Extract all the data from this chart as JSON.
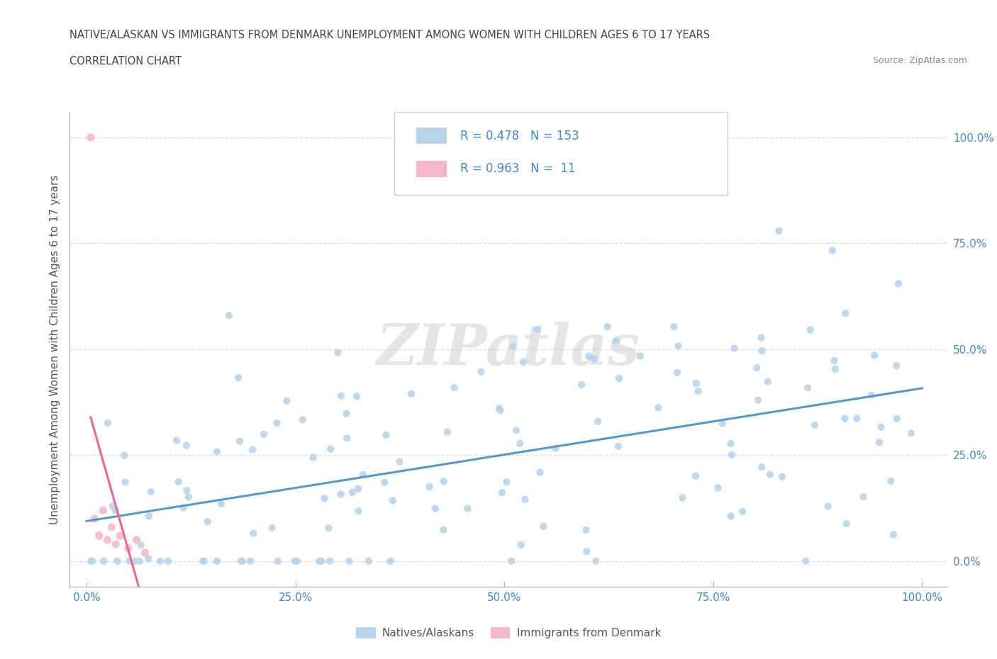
{
  "title_line1": "NATIVE/ALASKAN VS IMMIGRANTS FROM DENMARK UNEMPLOYMENT AMONG WOMEN WITH CHILDREN AGES 6 TO 17 YEARS",
  "title_line2": "CORRELATION CHART",
  "source_text": "Source: ZipAtlas.com",
  "ylabel": "Unemployment Among Women with Children Ages 6 to 17 years",
  "blue_R": 0.478,
  "blue_N": 153,
  "pink_R": 0.963,
  "pink_N": 11,
  "blue_color": "#b8d4ea",
  "pink_color": "#f5b8c8",
  "blue_line_color": "#5599cc",
  "pink_line_color": "#ee6688",
  "legend_blue_label": "Natives/Alaskans",
  "legend_pink_label": "Immigrants from Denmark",
  "watermark": "ZIPatlas",
  "background_color": "#ffffff",
  "grid_color": "#dddddd",
  "tick_label_color": "#4488cc",
  "title_color": "#444444",
  "source_color": "#888888"
}
